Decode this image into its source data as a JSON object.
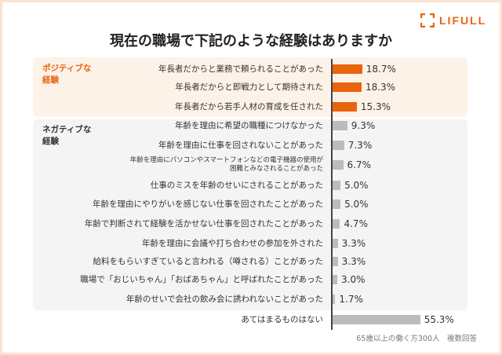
{
  "title": "現在の職場で下記のような経験はありますか",
  "logo": "LIFULL",
  "note": "65歳以上の働く方300人　複数回答",
  "colors": {
    "positive": "#e8640e",
    "negative": "#bcbcbc",
    "positive_bg": "#fdf2e8",
    "negative_bg": "#f4f4f4"
  },
  "chart_data": {
    "type": "bar",
    "orientation": "horizontal",
    "title": "現在の職場で下記のような経験はありますか",
    "groups": [
      {
        "label": "ポジティブな経験",
        "label_lines": [
          "ポジティブな",
          "経験"
        ],
        "color": "#e8640e",
        "items": [
          {
            "label": "年長者だからと業務で頼られることがあった",
            "value": 18.7,
            "display": "18.7%"
          },
          {
            "label": "年長者だからと即戦力として期待された",
            "value": 18.3,
            "display": "18.3%"
          },
          {
            "label": "年長者だから若手人材の育成を任された",
            "value": 15.3,
            "display": "15.3%"
          }
        ]
      },
      {
        "label": "ネガティブな経験",
        "label_lines": [
          "ネガティブな",
          "経験"
        ],
        "color": "#bcbcbc",
        "items": [
          {
            "label": "年齢を理由に希望の職種につけなかった",
            "value": 9.3,
            "display": "9.3%"
          },
          {
            "label": "年齢を理由に仕事を回されないことがあった",
            "value": 7.3,
            "display": "7.3%"
          },
          {
            "label": "年齢を理由にパソコンやスマートフォンなどの電子機器の使用が\n困難とみなされることがあった",
            "value": 6.7,
            "display": "6.7%",
            "small": true
          },
          {
            "label": "仕事のミスを年齢のせいにされることがあった",
            "value": 5.0,
            "display": "5.0%"
          },
          {
            "label": "年齢を理由にやりがいを感じない仕事を回されたことがあった",
            "value": 5.0,
            "display": "5.0%"
          },
          {
            "label": "年齢で判断されて経験を活かせない仕事を回されたことがあった",
            "value": 4.7,
            "display": "4.7%"
          },
          {
            "label": "年齢を理由に会議や打ち合わせの参加を外された",
            "value": 3.3,
            "display": "3.3%"
          },
          {
            "label": "給料をもらいすぎていると言われる（噂される）ことがあった",
            "value": 3.3,
            "display": "3.3%"
          },
          {
            "label": "職場で「おじいちゃん」「おばあちゃん」と呼ばれたことがあった",
            "value": 3.0,
            "display": "3.0%"
          },
          {
            "label": "年齢のせいで会社の飲み会に誘われないことがあった",
            "value": 1.7,
            "display": "1.7%"
          }
        ]
      },
      {
        "label": "",
        "label_lines": [],
        "color": "#bcbcbc",
        "items": [
          {
            "label": "あてはまるものはない",
            "value": 55.3,
            "display": "55.3%"
          }
        ]
      }
    ],
    "unit": "%",
    "xlim": [
      0,
      100
    ],
    "grid": false
  }
}
